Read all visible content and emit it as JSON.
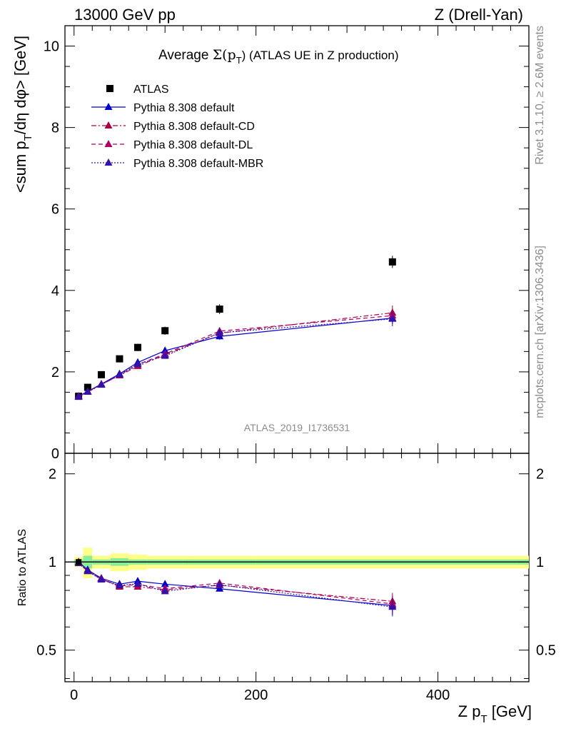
{
  "header": {
    "left": "13000 GeV pp",
    "right": "Z (Drell-Yan)"
  },
  "side_texts": {
    "rivet": "Rivet 3.1.10, ≥ 2.6M events",
    "mcplots": "mcplots.cern.ch [arXiv:1306.3436]"
  },
  "chart_data": [
    {
      "type": "scatter",
      "title": "Average Σ(p_T) (ATLAS UE in Z production)",
      "title_parts": {
        "pre": "Average ",
        "sigma": "Σ(p",
        "sub": "T",
        "post": ") (ATLAS UE in Z production)"
      },
      "analysis_label": "ATLAS_2019_I1736531",
      "ylabel": "<sum p_T/dη dφ> [GeV]",
      "ylabel_parts": {
        "pre": "<sum p",
        "sub": "T",
        "post": "/dη dφ> [GeV]"
      },
      "xlim": [
        -10,
        500
      ],
      "ylim": [
        0,
        10.5
      ],
      "yticks": [
        0,
        2,
        4,
        6,
        8,
        10
      ],
      "legend_position": "top-left",
      "x": [
        5,
        15,
        30,
        50,
        70,
        100,
        160,
        350
      ],
      "series": [
        {
          "name": "ATLAS",
          "color": "#000000",
          "marker": "square",
          "line": "none",
          "values": [
            1.4,
            1.62,
            1.93,
            2.32,
            2.6,
            3.01,
            3.54,
            4.7
          ],
          "errors": [
            0.05,
            0.06,
            0.07,
            0.08,
            0.09,
            0.1,
            0.12,
            0.15
          ]
        },
        {
          "name": "Pythia 8.308 default",
          "color": "#0000cc",
          "marker": "triangle",
          "line": "solid",
          "values": [
            1.4,
            1.52,
            1.7,
            1.95,
            2.23,
            2.52,
            2.87,
            3.32
          ],
          "errors": [
            0.02,
            0.02,
            0.03,
            0.03,
            0.04,
            0.05,
            0.08,
            0.15
          ]
        },
        {
          "name": "Pythia 8.308 default-CD",
          "color": "#aa0044",
          "marker": "triangle",
          "line": "dashdot",
          "values": [
            1.39,
            1.51,
            1.69,
            1.91,
            2.14,
            2.42,
            2.95,
            3.45
          ],
          "errors": [
            0.02,
            0.02,
            0.03,
            0.03,
            0.04,
            0.05,
            0.09,
            0.18
          ]
        },
        {
          "name": "Pythia 8.308 default-DL",
          "color": "#aa0066",
          "marker": "triangle",
          "line": "dashed",
          "values": [
            1.4,
            1.51,
            1.69,
            1.92,
            2.18,
            2.44,
            3.0,
            3.38
          ],
          "errors": [
            0.02,
            0.02,
            0.03,
            0.03,
            0.04,
            0.05,
            0.09,
            0.18
          ]
        },
        {
          "name": "Pythia 8.308 default-MBR",
          "color": "#3311aa",
          "marker": "triangle",
          "line": "dotted",
          "values": [
            1.39,
            1.51,
            1.68,
            1.93,
            2.19,
            2.39,
            2.96,
            3.3
          ],
          "errors": [
            0.02,
            0.02,
            0.03,
            0.03,
            0.04,
            0.05,
            0.09,
            0.18
          ]
        }
      ]
    },
    {
      "type": "scatter",
      "ylabel": "Ratio to ATLAS",
      "xlabel": "Z p_T [GeV]",
      "xlabel_parts": {
        "pre": "Z p",
        "sub": "T",
        "post": " [GeV]"
      },
      "xlim": [
        -10,
        500
      ],
      "ylim": [
        0.39,
        2.35
      ],
      "y_scale": "log",
      "yticks": [
        0.5,
        1,
        2
      ],
      "ytick_labels": [
        "0.5",
        "1",
        "2"
      ],
      "xticks": [
        0,
        200,
        400
      ],
      "xtick_labels": [
        "0",
        "200",
        "400"
      ],
      "x": [
        5,
        15,
        30,
        50,
        70,
        100,
        160,
        350
      ],
      "atlas_band": {
        "bin_edges": [
          0,
          10,
          20,
          40,
          60,
          80,
          120,
          200,
          500
        ],
        "stat_rel": [
          0.02,
          0.05,
          0.02,
          0.03,
          0.02,
          0.02,
          0.02,
          0.02
        ],
        "total_rel": [
          0.04,
          0.12,
          0.05,
          0.07,
          0.06,
          0.05,
          0.05,
          0.05
        ]
      },
      "series": [
        {
          "name": "Pythia 8.308 default",
          "values": [
            1.0,
            0.94,
            0.88,
            0.84,
            0.86,
            0.84,
            0.81,
            0.71
          ]
        },
        {
          "name": "Pythia 8.308 default-CD",
          "values": [
            0.99,
            0.93,
            0.875,
            0.823,
            0.823,
            0.804,
            0.833,
            0.734
          ]
        },
        {
          "name": "Pythia 8.308 default-DL",
          "values": [
            1.0,
            0.93,
            0.875,
            0.828,
            0.838,
            0.811,
            0.847,
            0.719
          ]
        },
        {
          "name": "Pythia 8.308 default-MBR",
          "values": [
            0.99,
            0.93,
            0.87,
            0.832,
            0.842,
            0.794,
            0.836,
            0.702
          ]
        }
      ]
    }
  ]
}
